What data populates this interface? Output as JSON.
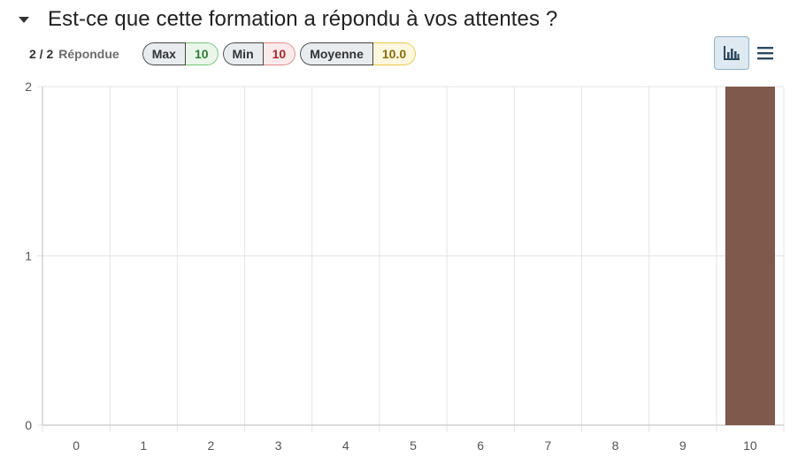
{
  "question": {
    "title": "Est-ce que cette formation a répondu à vos attentes ?"
  },
  "stats": {
    "answered_count": "2 / 2",
    "answered_label": "Répondue",
    "max_label": "Max",
    "max_value": "10",
    "min_label": "Min",
    "min_value": "10",
    "avg_label": "Moyenne",
    "avg_value": "10.0"
  },
  "view_toggles": {
    "graph_icon": "bar-chart-icon",
    "table_icon": "list-icon",
    "active": "graph"
  },
  "chart_data": {
    "type": "bar",
    "categories": [
      "0",
      "1",
      "2",
      "3",
      "4",
      "5",
      "6",
      "7",
      "8",
      "9",
      "10"
    ],
    "values": [
      0,
      0,
      0,
      0,
      0,
      0,
      0,
      0,
      0,
      0,
      2
    ],
    "title": "",
    "xlabel": "",
    "ylabel": "",
    "ylim": [
      0,
      2
    ],
    "yticks": [
      "0",
      "1",
      "2"
    ],
    "grid": true,
    "bar_color": "#7f5a4c",
    "grid_color": "#e4e4e4",
    "axis_color": "#c8c8c8"
  }
}
